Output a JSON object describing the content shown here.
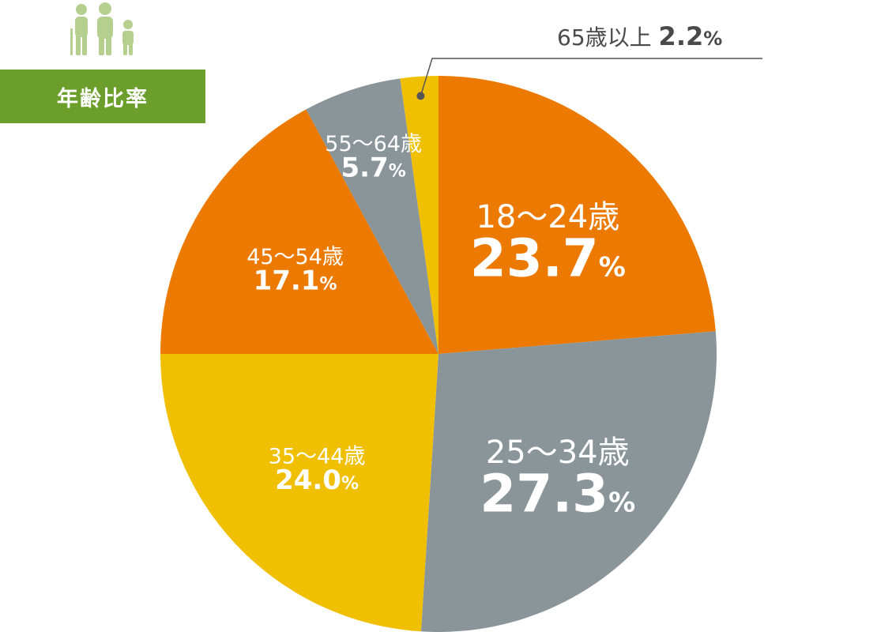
{
  "title": "年齢比率",
  "icons": {
    "header": "family-people-icon"
  },
  "colors": {
    "orange": "#ec7a00",
    "gray": "#8a959a",
    "yellow": "#f0c000",
    "title_bg": "#6b9e2a",
    "icon": "#b5cf8e"
  },
  "chart_data": {
    "type": "pie",
    "start_angle_deg": 0,
    "direction": "clockwise",
    "slices": [
      {
        "label": "18～24歳",
        "value": 23.7,
        "display": "23.7",
        "color": "#ec7a00"
      },
      {
        "label": "25～34歳",
        "value": 27.3,
        "display": "27.3",
        "color": "#8a959a"
      },
      {
        "label": "35～44歳",
        "value": 24.0,
        "display": "24.0",
        "color": "#f0c000"
      },
      {
        "label": "45～54歳",
        "value": 17.1,
        "display": "17.1",
        "color": "#ec7a00"
      },
      {
        "label": "55～64歳",
        "value": 5.7,
        "display": "5.7",
        "color": "#8a959a"
      },
      {
        "label": "65歳以上",
        "value": 2.2,
        "display": "2.2",
        "color": "#f0c000"
      }
    ],
    "unit": "%"
  }
}
